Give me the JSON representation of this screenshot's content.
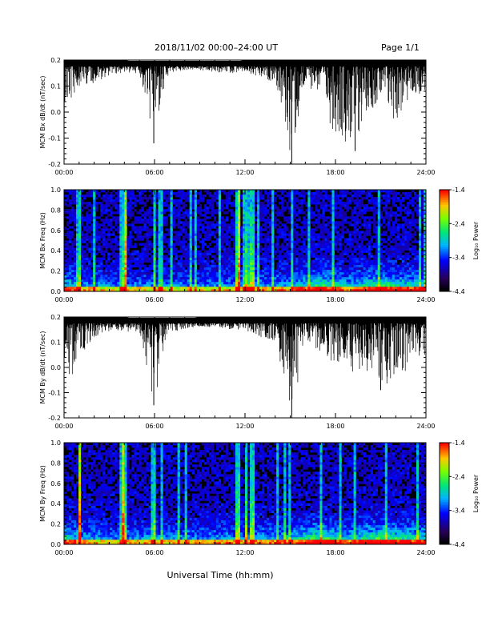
{
  "header": {
    "title": "2018/11/02  00:00–24:00 UT",
    "page": "Page 1/1"
  },
  "xlabel": "Universal Time (hh:mm)",
  "xticks": [
    "00:00",
    "06:00",
    "12:00",
    "18:00",
    "24:00"
  ],
  "colorbar": {
    "ticks": [
      "-1.4",
      "-2.4",
      "-3.4",
      "-4.4"
    ],
    "label": "Log₁₀ Power"
  },
  "chart_data": [
    {
      "type": "line",
      "ylabel": "MCM Bx dB/dt (nT/sec)",
      "xlim": [
        0,
        24
      ],
      "ylim": [
        -0.2,
        0.2
      ],
      "yticks": [
        "0.2",
        "0.1",
        "0.0",
        "-0.1",
        "-0.2"
      ],
      "x": [
        0,
        1,
        2,
        3,
        4,
        5,
        5.95,
        7,
        8,
        9,
        10,
        11,
        12,
        13,
        14,
        15.1,
        16,
        17,
        17.7,
        19.3,
        20,
        21,
        22,
        23,
        24
      ],
      "upper": [
        0.2,
        0.2,
        0.2,
        0.2,
        0.2,
        0.19,
        0.19,
        0.19,
        0.19,
        0.19,
        0.19,
        0.19,
        0.2,
        0.2,
        0.2,
        0.2,
        0.2,
        0.2,
        0.2,
        0.2,
        0.2,
        0.2,
        0.2,
        0.2,
        0.2
      ],
      "lower": [
        -0.03,
        0.1,
        0.11,
        0.14,
        0.15,
        0.15,
        -0.12,
        0.15,
        0.16,
        0.16,
        0.15,
        0.15,
        0.15,
        0.12,
        0.12,
        -0.2,
        0.1,
        0.07,
        -0.06,
        -0.15,
        0.0,
        0.03,
        -0.05,
        0.05,
        0.08
      ]
    },
    {
      "type": "heatmap",
      "ylabel": "MCM Bx Freq (Hz)",
      "xlim": [
        0,
        24
      ],
      "ylim": [
        0,
        1.0
      ],
      "yticks": [
        "1.0",
        "0.8",
        "0.6",
        "0.4",
        "0.2",
        "0.0"
      ],
      "zlim": [
        -4.4,
        -1.4
      ],
      "bright_lines": [
        1.0,
        4.0,
        6.0,
        11.5,
        12.1,
        12.5
      ],
      "activity": [
        0.6,
        0.4,
        0.35,
        0.3,
        0.3,
        0.35,
        0.3,
        0.3,
        0.35,
        0.3,
        0.35,
        0.35,
        0.35,
        0.4,
        0.4,
        0.45,
        0.55,
        0.75,
        0.55,
        0.45,
        0.6,
        0.7,
        0.6,
        0.55,
        0.6
      ]
    },
    {
      "type": "line",
      "ylabel": "MCM By dB/dt (nT/sec)",
      "xlim": [
        0,
        24
      ],
      "ylim": [
        -0.2,
        0.2
      ],
      "yticks": [
        "0.2",
        "0.1",
        "0.0",
        "-0.1",
        "-0.2"
      ],
      "x": [
        0,
        0.5,
        1,
        2,
        3,
        4,
        5,
        5.95,
        7,
        8,
        9,
        10,
        11,
        12,
        13,
        14,
        15.1,
        16,
        17,
        18,
        19,
        20,
        21,
        22,
        23,
        24
      ],
      "upper": [
        0.2,
        0.2,
        0.2,
        0.2,
        0.2,
        0.2,
        0.19,
        0.19,
        0.19,
        0.19,
        0.2,
        0.2,
        0.2,
        0.2,
        0.2,
        0.2,
        0.2,
        0.2,
        0.2,
        0.2,
        0.2,
        0.2,
        0.2,
        0.2,
        0.2,
        0.2
      ],
      "lower": [
        0.0,
        -0.05,
        0.02,
        0.1,
        0.14,
        0.14,
        0.14,
        -0.15,
        0.14,
        0.15,
        0.16,
        0.16,
        0.15,
        0.14,
        0.12,
        0.1,
        -0.2,
        0.1,
        0.05,
        0.0,
        -0.05,
        -0.01,
        -0.09,
        -0.04,
        0.0,
        0.05
      ]
    },
    {
      "type": "heatmap",
      "ylabel": "MCM By Freq (Hz)",
      "xlim": [
        0,
        24
      ],
      "ylim": [
        0,
        1.0
      ],
      "yticks": [
        "1.0",
        "0.8",
        "0.6",
        "0.4",
        "0.2",
        "0.0"
      ],
      "zlim": [
        -4.4,
        -1.4
      ],
      "bright_lines": [
        1.0,
        4.0,
        6.0,
        11.5,
        12.1,
        12.5
      ],
      "activity": [
        0.65,
        0.45,
        0.4,
        0.35,
        0.35,
        0.4,
        0.35,
        0.35,
        0.4,
        0.35,
        0.4,
        0.4,
        0.4,
        0.45,
        0.45,
        0.5,
        0.6,
        0.8,
        0.6,
        0.5,
        0.65,
        0.75,
        0.65,
        0.6,
        0.65
      ]
    }
  ]
}
